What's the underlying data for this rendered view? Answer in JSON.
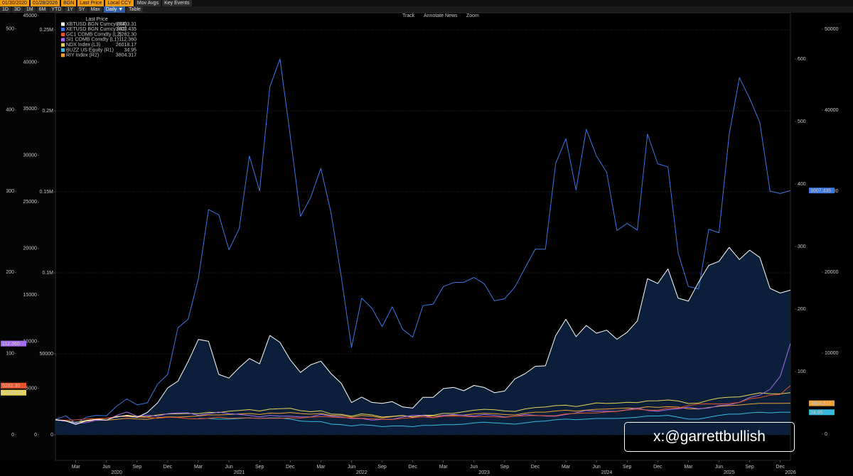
{
  "toolbar": {
    "start_date": "01/30/2020",
    "end_date": "01/28/2026",
    "source": "BGN",
    "field": "Last Price",
    "currency": "Local CCY",
    "mov_avgs": "Mov Avgs",
    "key_events": "Key Events",
    "periods": [
      "1D",
      "3D",
      "1M",
      "6M",
      "YTD",
      "1Y",
      "5Y",
      "Max"
    ],
    "frequency": "Daily ▼",
    "table": "Table"
  },
  "chart_tools": [
    "Track",
    "Annotate",
    "News",
    "Zoom"
  ],
  "chart_data": {
    "type": "line",
    "legend_title": "Last Price",
    "x": [
      "2020-01",
      "2020-02",
      "2020-03",
      "2020-04",
      "2020-05",
      "2020-06",
      "2020-07",
      "2020-08",
      "2020-09",
      "2020-10",
      "2020-11",
      "2020-12",
      "2021-01",
      "2021-02",
      "2021-03",
      "2021-04",
      "2021-05",
      "2021-06",
      "2021-07",
      "2021-08",
      "2021-09",
      "2021-10",
      "2021-11",
      "2021-12",
      "2022-01",
      "2022-02",
      "2022-03",
      "2022-04",
      "2022-05",
      "2022-06",
      "2022-07",
      "2022-08",
      "2022-09",
      "2022-10",
      "2022-11",
      "2022-12",
      "2023-01",
      "2023-02",
      "2023-03",
      "2023-04",
      "2023-05",
      "2023-06",
      "2023-07",
      "2023-08",
      "2023-09",
      "2023-10",
      "2023-11",
      "2023-12",
      "2024-01",
      "2024-02",
      "2024-03",
      "2024-04",
      "2024-05",
      "2024-06",
      "2024-07",
      "2024-08",
      "2024-09",
      "2024-10",
      "2024-11",
      "2024-12",
      "2025-01",
      "2025-02",
      "2025-03",
      "2025-04",
      "2025-05",
      "2025-06",
      "2025-07",
      "2025-08",
      "2025-09",
      "2025-10",
      "2025-11",
      "2025-12",
      "2026-01"
    ],
    "xlim": [
      "2020-01",
      "2026-01"
    ],
    "xticks": [
      {
        "value": "2020-03",
        "label": "Mar"
      },
      {
        "value": "2020-06",
        "label": "Jun"
      },
      {
        "value": "2020-09",
        "label": "Sep"
      },
      {
        "value": "2020-12",
        "label": "Dec"
      },
      {
        "value": "2021-03",
        "label": "Mar"
      },
      {
        "value": "2021-06",
        "label": "Jun"
      },
      {
        "value": "2021-09",
        "label": "Sep"
      },
      {
        "value": "2021-12",
        "label": "Dec"
      },
      {
        "value": "2022-03",
        "label": "Mar"
      },
      {
        "value": "2022-06",
        "label": "Jun"
      },
      {
        "value": "2022-09",
        "label": "Sep"
      },
      {
        "value": "2022-12",
        "label": "Dec"
      },
      {
        "value": "2023-03",
        "label": "Mar"
      },
      {
        "value": "2023-06",
        "label": "Jun"
      },
      {
        "value": "2023-09",
        "label": "Sep"
      },
      {
        "value": "2023-12",
        "label": "Dec"
      },
      {
        "value": "2024-03",
        "label": "Mar"
      },
      {
        "value": "2024-06",
        "label": "Jun"
      },
      {
        "value": "2024-09",
        "label": "Sep"
      },
      {
        "value": "2024-12",
        "label": "Dec"
      },
      {
        "value": "2025-03",
        "label": "Mar"
      },
      {
        "value": "2025-06",
        "label": "Jun"
      },
      {
        "value": "2025-09",
        "label": "Sep"
      },
      {
        "value": "2025-12",
        "label": "Dec"
      }
    ],
    "year_ticks": [
      {
        "value": "2020-07",
        "label": "2020"
      },
      {
        "value": "2021-07",
        "label": "2021"
      },
      {
        "value": "2022-07",
        "label": "2022"
      },
      {
        "value": "2023-07",
        "label": "2023"
      },
      {
        "value": "2024-07",
        "label": "2024"
      },
      {
        "value": "2025-07",
        "label": "2025"
      },
      {
        "value": "2026-01",
        "label": "2026"
      }
    ],
    "axes": [
      {
        "side": "left",
        "ylim": [
          -31.5,
          519.7
        ],
        "yticks": [
          0,
          100,
          200,
          300,
          400,
          500
        ]
      },
      {
        "side": "left",
        "ylim": [
          -2746,
          45310
        ],
        "yticks": [
          0,
          5000,
          10000,
          15000,
          20000,
          25000,
          30000,
          35000,
          40000,
          45000
        ]
      },
      {
        "side": "left",
        "ylim": [
          -15790,
          260530
        ],
        "grid": true,
        "yticks": [
          0,
          50000,
          {
            "value": 100000,
            "label": "0.1M"
          },
          {
            "value": 150000,
            "label": "0.15M"
          },
          {
            "value": 200000,
            "label": "0.2M"
          },
          {
            "value": 250000,
            "label": "0.25M"
          }
        ]
      },
      {
        "side": "right",
        "ylim": [
          -42,
          674
        ],
        "yticks": [
          100,
          200,
          300,
          400,
          500,
          600
        ]
      },
      {
        "side": "right",
        "ylim": [
          -3246,
          52018
        ],
        "yticks": [
          0,
          10000,
          20000,
          30000,
          40000,
          50000
        ]
      },
      {
        "side": "right",
        "ylim": [
          -325,
          5202
        ]
      }
    ],
    "series": [
      {
        "name": "XBTUSD BGN Curncy  (R4)",
        "last_label": "89303.31",
        "color": "#ffffff",
        "axis": 2,
        "area": true,
        "tag": false,
        "values": [
          9300,
          8600,
          6400,
          8600,
          9500,
          9100,
          11300,
          11700,
          10800,
          13800,
          19700,
          29000,
          33100,
          45200,
          58900,
          57700,
          37300,
          35000,
          41500,
          47100,
          43800,
          61300,
          57000,
          46300,
          38500,
          43200,
          45500,
          37700,
          31800,
          19900,
          23300,
          20000,
          19400,
          20500,
          17200,
          16500,
          23100,
          23100,
          28500,
          29300,
          27200,
          30500,
          29200,
          26000,
          27000,
          34500,
          37700,
          42300,
          42600,
          61200,
          71300,
          60600,
          67500,
          62700,
          64600,
          59000,
          63300,
          70300,
          96400,
          93400,
          102400,
          84400,
          82500,
          94200,
          104600,
          107100,
          115700,
          108200,
          114000,
          109500,
          90400,
          87500,
          89303.31
        ]
      },
      {
        "name": "XETUSD BGN Curncy  (R3)",
        "last_label": "3007.435",
        "color": "#3b78e7",
        "axis": 5,
        "tag": true,
        "values": [
          180,
          225,
          133,
          206,
          231,
          226,
          345,
          434,
          360,
          386,
          616,
          737,
          1314,
          1417,
          1918,
          2773,
          2707,
          2275,
          2537,
          3433,
          3001,
          4288,
          4631,
          3683,
          2688,
          2920,
          3282,
          2727,
          1942,
          1070,
          1679,
          1553,
          1328,
          1572,
          1295,
          1196,
          1585,
          1605,
          1822,
          1870,
          1875,
          1934,
          1856,
          1645,
          1671,
          1814,
          2052,
          2282,
          2283,
          3340,
          3647,
          3014,
          3763,
          3433,
          3232,
          2513,
          2602,
          2518,
          3705,
          3337,
          3300,
          2237,
          1822,
          1793,
          2530,
          2486,
          3698,
          4400,
          4145,
          3848,
          3000,
          2970,
          3007.435
        ]
      },
      {
        "name": "GC1 COMB Comdty  (L2)",
        "last_label": "5282.30",
        "color": "#e8542c",
        "axis": 1,
        "tag": true,
        "values": [
          1590,
          1570,
          1600,
          1690,
          1730,
          1780,
          1970,
          1970,
          1890,
          1880,
          1780,
          1890,
          1850,
          1730,
          1710,
          1770,
          1900,
          1770,
          1810,
          1810,
          1760,
          1780,
          1780,
          1830,
          1800,
          1900,
          1950,
          1910,
          1850,
          1810,
          1780,
          1720,
          1670,
          1640,
          1770,
          1830,
          1930,
          1830,
          1990,
          2000,
          1980,
          1930,
          1970,
          1940,
          1870,
          2000,
          2040,
          2070,
          2050,
          2050,
          2240,
          2300,
          2350,
          2340,
          2450,
          2510,
          2660,
          2750,
          2660,
          2640,
          2840,
          2860,
          3150,
          3310,
          3320,
          3310,
          3350,
          3480,
          3870,
          4000,
          4250,
          4340,
          5282.3
        ]
      },
      {
        "name": "SI1 COMB Comdty  (L1)",
        "last_label": "112.360",
        "color": "#a56ef0",
        "axis": 0,
        "tag": true,
        "values": [
          18,
          17,
          14,
          15,
          18,
          18,
          24,
          28,
          23,
          24,
          23,
          26,
          27,
          27,
          24,
          26,
          28,
          26,
          25,
          24,
          22,
          24,
          23,
          23,
          22,
          22,
          25,
          23,
          22,
          20,
          20,
          18,
          19,
          19,
          22,
          24,
          24,
          21,
          24,
          25,
          24,
          23,
          25,
          24,
          22,
          23,
          25,
          24,
          23,
          23,
          25,
          27,
          30,
          29,
          29,
          29,
          31,
          33,
          30,
          29,
          31,
          32,
          34,
          32,
          33,
          36,
          37,
          40,
          46,
          49,
          56,
          72,
          112.36
        ]
      },
      {
        "name": "NDX Index  (L3)",
        "last_label": "26018.17",
        "color": "#e8d45a",
        "axis": 2,
        "tag": true,
        "values": [
          9150,
          8460,
          7810,
          8890,
          9560,
          10160,
          10900,
          12110,
          11420,
          11050,
          12270,
          12890,
          12930,
          13190,
          13090,
          13860,
          13690,
          14550,
          15030,
          15590,
          14690,
          15850,
          16140,
          16320,
          14930,
          14240,
          14840,
          12850,
          12640,
          11500,
          12950,
          12270,
          10970,
          11400,
          11950,
          10940,
          12100,
          12040,
          13180,
          13240,
          14250,
          15180,
          15760,
          15500,
          14720,
          14410,
          15950,
          16830,
          17140,
          18040,
          18250,
          17440,
          18540,
          19680,
          19360,
          19570,
          20060,
          19890,
          20930,
          21010,
          21480,
          20880,
          19280,
          19570,
          21340,
          22680,
          23220,
          23420,
          24680,
          25860,
          25400,
          25250,
          26018.17
        ]
      },
      {
        "name": "BUZZ US Equity  (R1)",
        "last_label": "34.95",
        "color": "#36b9dc",
        "axis": 3,
        "tag": true,
        "values": [
          null,
          null,
          null,
          null,
          null,
          null,
          null,
          null,
          null,
          null,
          null,
          null,
          null,
          null,
          25,
          25,
          24,
          24,
          25,
          26,
          25,
          26,
          26,
          24,
          21,
          20,
          20,
          16,
          15,
          13,
          15,
          14,
          12,
          13,
          13,
          12,
          14,
          14,
          15,
          15,
          16,
          18,
          19,
          18,
          17,
          16,
          18,
          20,
          21,
          23,
          24,
          23,
          24,
          25,
          25,
          25,
          26,
          27,
          29,
          29,
          30,
          27,
          24,
          24,
          27,
          30,
          32,
          32,
          34,
          35,
          34,
          35,
          34.95
        ]
      },
      {
        "name": "RIY Index  (R2)",
        "last_label": "3804.317",
        "color": "#f0a032",
        "axis": 4,
        "tag": true,
        "values": [
          1800,
          1650,
          1420,
          1600,
          1680,
          1720,
          1820,
          1950,
          1870,
          1820,
          2030,
          2120,
          2100,
          2160,
          2240,
          2370,
          2370,
          2420,
          2470,
          2540,
          2420,
          2590,
          2550,
          2670,
          2540,
          2460,
          2550,
          2310,
          2300,
          2100,
          2300,
          2200,
          2000,
          2160,
          2280,
          2150,
          2270,
          2220,
          2300,
          2330,
          2340,
          2490,
          2570,
          2530,
          2410,
          2360,
          2580,
          2710,
          2710,
          2850,
          2950,
          2830,
          2960,
          3060,
          3100,
          3160,
          3210,
          3180,
          3380,
          3300,
          3390,
          3330,
          3120,
          3090,
          3280,
          3440,
          3520,
          3590,
          3710,
          3790,
          3800,
          3800,
          3804.317
        ]
      }
    ]
  },
  "watermark": "x:@garrettbullish"
}
